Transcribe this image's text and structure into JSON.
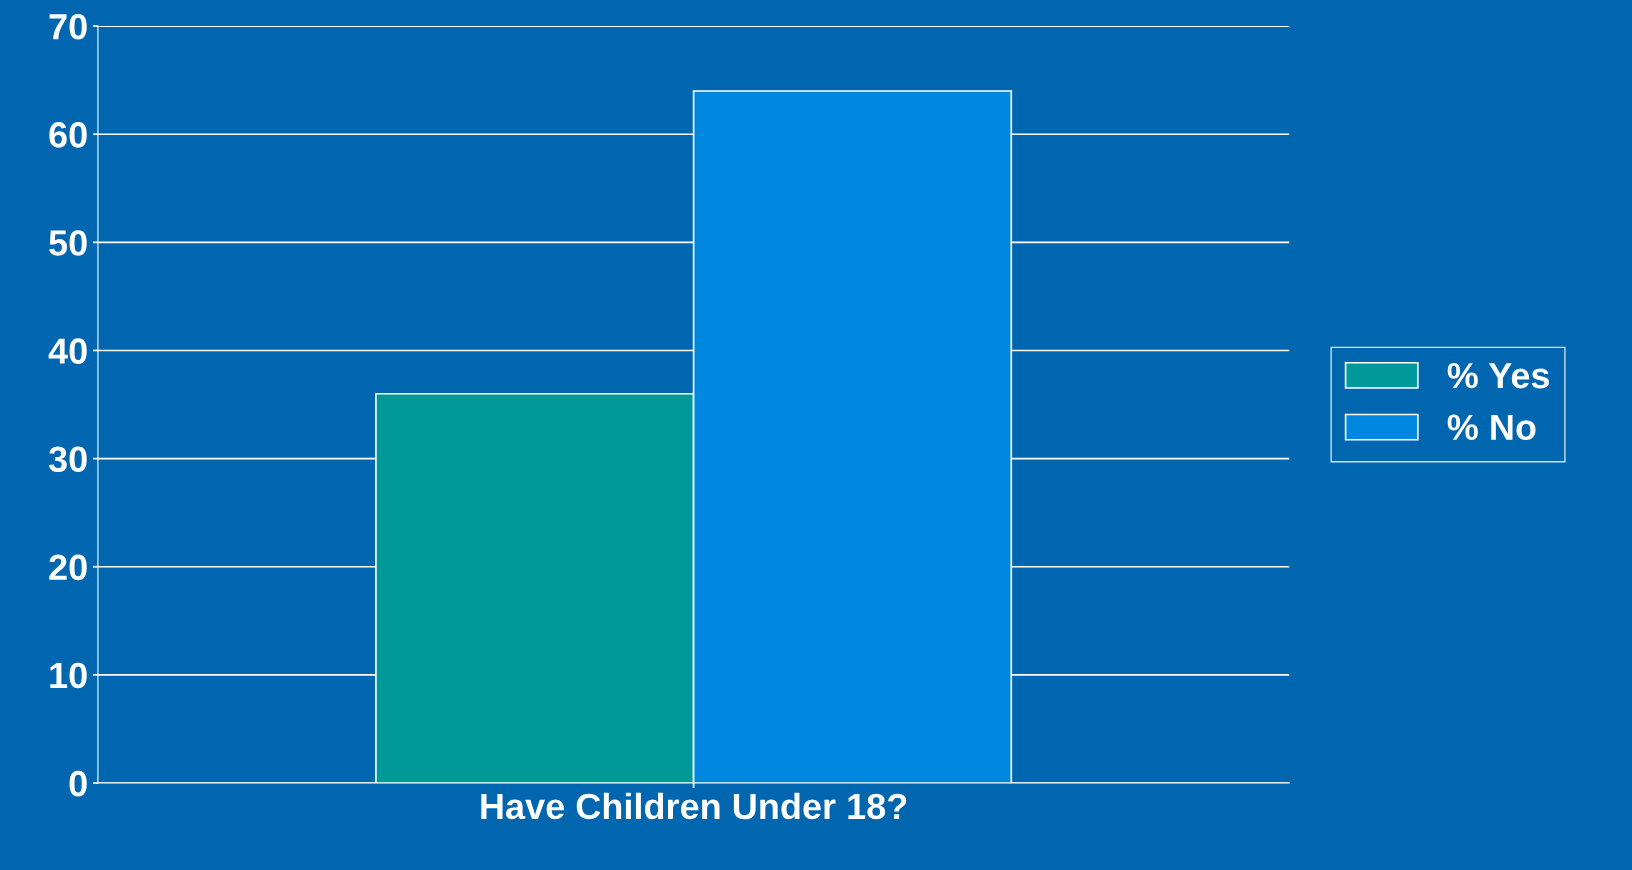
{
  "chart_data": {
    "type": "bar",
    "categories": [
      "Have Children Under 18?"
    ],
    "series": [
      {
        "name": "% Yes",
        "color": "#009999",
        "values": [
          36
        ]
      },
      {
        "name": "% No",
        "color": "#0088e0",
        "values": [
          64
        ]
      }
    ],
    "ylim": [
      0,
      70
    ],
    "yticks": [
      0,
      10,
      20,
      30,
      40,
      50,
      60,
      70
    ],
    "grid": "y",
    "legend": "right"
  }
}
